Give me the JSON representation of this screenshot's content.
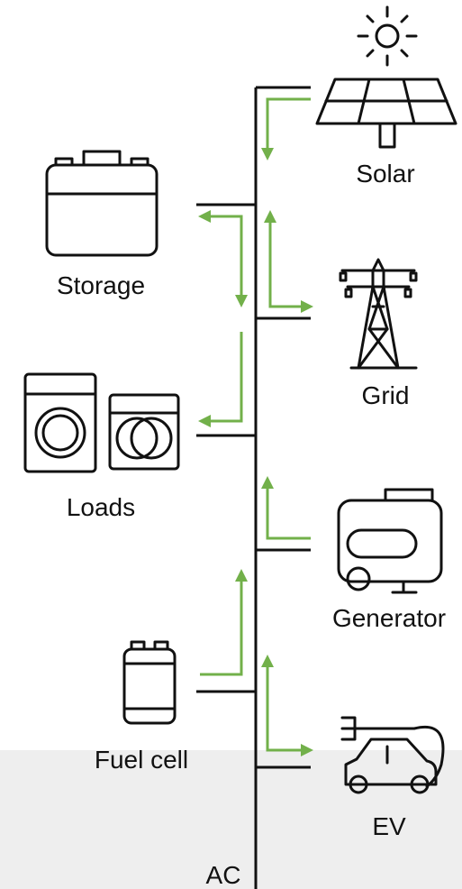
{
  "nodes": [
    {
      "label": "Solar"
    },
    {
      "label": "Storage"
    },
    {
      "label": "Grid"
    },
    {
      "label": "Loads"
    },
    {
      "label": "Generator"
    },
    {
      "label": "Fuel cell"
    },
    {
      "label": "EV"
    }
  ],
  "bus": {
    "label": "AC"
  }
}
